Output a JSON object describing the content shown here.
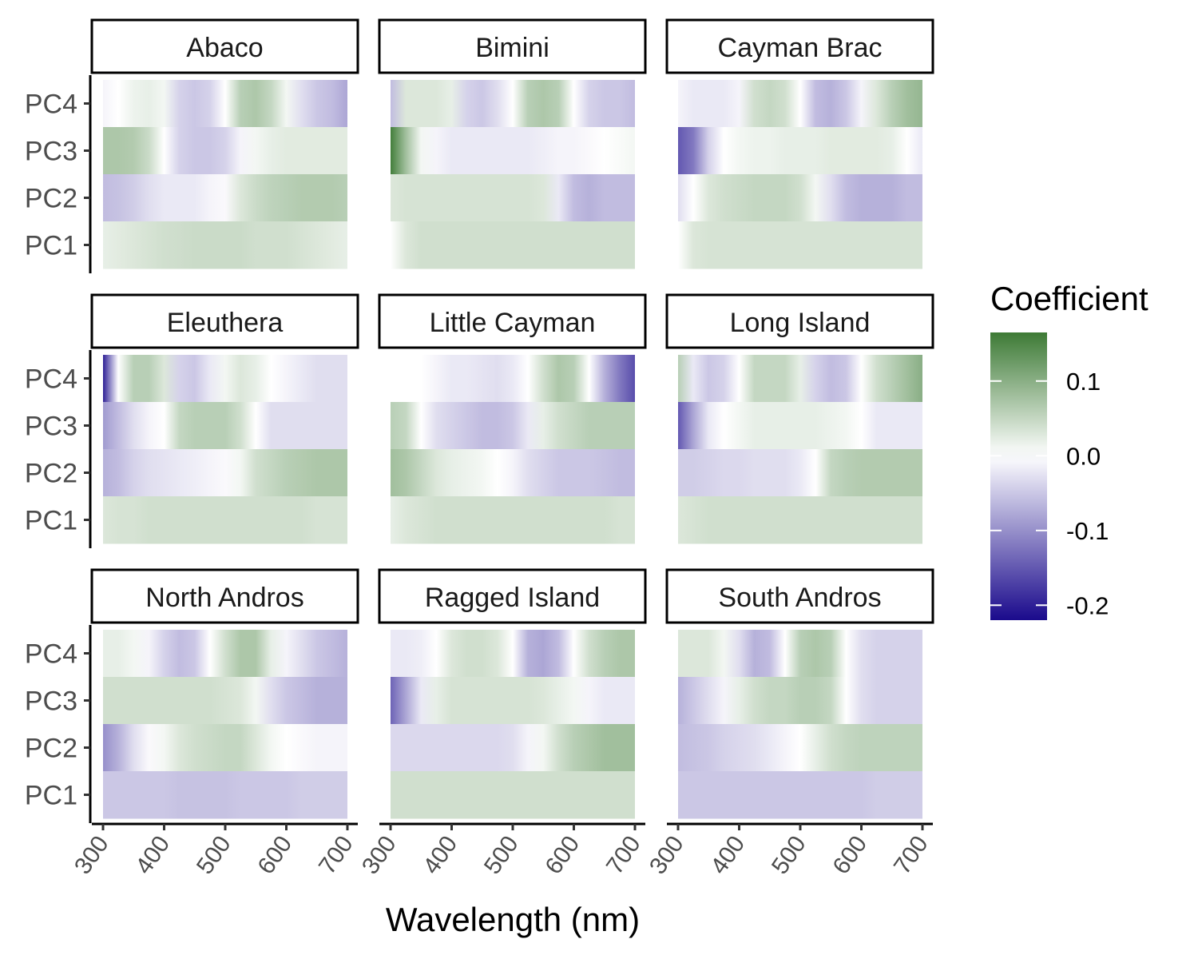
{
  "chart_data": {
    "type": "heatmap",
    "facets": [
      "Abaco",
      "Bimini",
      "Cayman Brac",
      "Eleuthera",
      "Little Cayman",
      "Long Island",
      "North Andros",
      "Ragged Island",
      "South Andros"
    ],
    "x": [
      300,
      325,
      350,
      375,
      400,
      425,
      450,
      475,
      500,
      525,
      550,
      575,
      600,
      625,
      650,
      675,
      700
    ],
    "rows": [
      "PC1",
      "PC2",
      "PC3",
      "PC4"
    ],
    "xlabel": "Wavelength (nm)",
    "xticks": [
      "300",
      "400",
      "500",
      "600",
      "700"
    ],
    "yticks": [
      "PC1",
      "PC2",
      "PC3",
      "PC4"
    ],
    "xlim": [
      300,
      700
    ],
    "legend": {
      "title": "Coefficient",
      "labels": [
        "0.1",
        "0.0",
        "-0.1",
        "-0.2"
      ],
      "ticks": [
        0.1,
        0.0,
        -0.1,
        -0.2
      ],
      "range": [
        -0.22,
        0.165
      ],
      "placement": "right"
    },
    "colors": {
      "low": "#1a0a8c",
      "mid": "#ffffff",
      "high": "#3d7a35"
    },
    "values": {
      "Abaco": {
        "PC1": [
          0.02,
          0.025,
          0.03,
          0.035,
          0.04,
          0.042,
          0.045,
          0.045,
          0.045,
          0.045,
          0.04,
          0.04,
          0.04,
          0.035,
          0.03,
          0.025,
          0.02
        ],
        "PC2": [
          -0.06,
          -0.055,
          -0.045,
          -0.03,
          -0.02,
          -0.02,
          -0.02,
          -0.01,
          -0.005,
          0.03,
          0.045,
          0.055,
          0.06,
          0.065,
          0.065,
          0.065,
          0.06
        ],
        "PC3": [
          0.07,
          0.07,
          0.065,
          0.045,
          0.0,
          -0.04,
          -0.05,
          -0.05,
          -0.04,
          -0.01,
          0.01,
          0.02,
          0.025,
          0.025,
          0.025,
          0.025,
          0.025
        ],
        "PC4": [
          -0.01,
          0.0,
          0.015,
          0.02,
          0.01,
          -0.04,
          -0.05,
          -0.04,
          0.0,
          0.06,
          0.07,
          0.05,
          0.01,
          -0.03,
          -0.05,
          -0.06,
          -0.08
        ]
      },
      "Bimini": {
        "PC1": [
          0.0,
          0.03,
          0.04,
          0.04,
          0.04,
          0.04,
          0.04,
          0.04,
          0.04,
          0.04,
          0.04,
          0.04,
          0.04,
          0.04,
          0.04,
          0.04,
          0.04
        ],
        "PC2": [
          0.03,
          0.035,
          0.035,
          0.035,
          0.035,
          0.035,
          0.035,
          0.035,
          0.035,
          0.035,
          0.03,
          -0.02,
          -0.06,
          -0.07,
          -0.06,
          -0.06,
          -0.06
        ],
        "PC3": [
          0.16,
          0.08,
          0.01,
          -0.01,
          -0.02,
          -0.02,
          -0.02,
          -0.02,
          -0.02,
          -0.02,
          -0.015,
          -0.01,
          -0.01,
          -0.005,
          0.0,
          0.005,
          0.01
        ],
        "PC4": [
          -0.06,
          0.03,
          0.03,
          0.03,
          0.02,
          -0.04,
          -0.05,
          -0.03,
          0.0,
          0.06,
          0.07,
          0.06,
          0.0,
          -0.04,
          -0.05,
          -0.05,
          -0.06
        ]
      },
      "Cayman Brac": {
        "PC1": [
          0.0,
          0.03,
          0.035,
          0.035,
          0.035,
          0.035,
          0.035,
          0.035,
          0.035,
          0.035,
          0.035,
          0.035,
          0.035,
          0.035,
          0.035,
          0.035,
          0.035
        ],
        "PC2": [
          -0.03,
          0.0,
          0.03,
          0.04,
          0.045,
          0.05,
          0.05,
          0.05,
          0.04,
          0.01,
          -0.03,
          -0.06,
          -0.07,
          -0.07,
          -0.07,
          -0.06,
          -0.06
        ],
        "PC3": [
          -0.15,
          -0.12,
          -0.04,
          0.0,
          0.01,
          0.015,
          0.015,
          0.02,
          0.02,
          0.02,
          0.025,
          0.025,
          0.025,
          0.025,
          0.02,
          0.0,
          -0.02
        ],
        "PC4": [
          -0.01,
          -0.02,
          -0.02,
          -0.02,
          -0.01,
          0.04,
          0.05,
          0.04,
          0.0,
          -0.06,
          -0.07,
          -0.05,
          -0.01,
          0.03,
          0.06,
          0.08,
          0.09
        ]
      },
      "Eleuthera": {
        "PC1": [
          0.03,
          0.035,
          0.035,
          0.04,
          0.04,
          0.04,
          0.04,
          0.04,
          0.04,
          0.04,
          0.04,
          0.04,
          0.04,
          0.04,
          0.035,
          0.035,
          0.035
        ],
        "PC2": [
          -0.07,
          -0.06,
          -0.04,
          -0.03,
          -0.025,
          -0.02,
          -0.015,
          -0.01,
          -0.005,
          0.01,
          0.04,
          0.05,
          0.06,
          0.065,
          0.07,
          0.07,
          0.07
        ],
        "PC3": [
          -0.09,
          -0.06,
          -0.03,
          -0.01,
          0.0,
          0.05,
          0.06,
          0.06,
          0.06,
          0.04,
          0.0,
          -0.03,
          -0.03,
          -0.03,
          -0.03,
          -0.03,
          -0.03
        ],
        "PC4": [
          -0.2,
          0.0,
          0.06,
          0.06,
          0.03,
          -0.04,
          -0.05,
          -0.02,
          0.01,
          0.03,
          0.02,
          0.0,
          -0.01,
          -0.02,
          -0.03,
          -0.03,
          -0.03
        ]
      },
      "Little Cayman": {
        "PC1": [
          0.02,
          0.03,
          0.035,
          0.04,
          0.04,
          0.04,
          0.04,
          0.04,
          0.04,
          0.04,
          0.04,
          0.04,
          0.04,
          0.04,
          0.04,
          0.035,
          0.035
        ],
        "PC2": [
          0.08,
          0.07,
          0.05,
          0.03,
          0.02,
          0.015,
          0.01,
          0.0,
          -0.01,
          -0.03,
          -0.04,
          -0.05,
          -0.05,
          -0.05,
          -0.055,
          -0.06,
          -0.06
        ],
        "PC3": [
          0.06,
          0.05,
          0.0,
          -0.03,
          -0.04,
          -0.05,
          -0.06,
          -0.06,
          -0.05,
          -0.02,
          0.02,
          0.04,
          0.05,
          0.06,
          0.06,
          0.06,
          0.06
        ],
        "PC4": [
          0.0,
          0.0,
          0.0,
          -0.01,
          -0.02,
          -0.02,
          -0.025,
          -0.03,
          -0.02,
          0.0,
          0.04,
          0.07,
          0.06,
          0.0,
          -0.07,
          -0.12,
          -0.16
        ]
      },
      "Long Island": {
        "PC1": [
          0.03,
          0.035,
          0.04,
          0.04,
          0.04,
          0.04,
          0.04,
          0.04,
          0.04,
          0.04,
          0.04,
          0.04,
          0.04,
          0.04,
          0.04,
          0.04,
          0.04
        ],
        "PC2": [
          -0.045,
          -0.045,
          -0.04,
          -0.035,
          -0.035,
          -0.03,
          -0.03,
          -0.03,
          -0.02,
          0.0,
          0.05,
          0.06,
          0.065,
          0.065,
          0.065,
          0.065,
          0.065
        ],
        "PC3": [
          -0.15,
          -0.08,
          -0.02,
          0.0,
          0.01,
          0.02,
          0.02,
          0.02,
          0.02,
          0.02,
          0.015,
          0.01,
          0.0,
          -0.02,
          -0.02,
          -0.02,
          -0.02
        ],
        "PC4": [
          0.06,
          -0.02,
          -0.05,
          -0.04,
          0.0,
          0.05,
          0.05,
          0.05,
          0.02,
          -0.04,
          -0.06,
          -0.05,
          0.0,
          0.04,
          0.06,
          0.08,
          0.1
        ]
      },
      "North Andros": {
        "PC1": [
          -0.05,
          -0.05,
          -0.05,
          -0.05,
          -0.05,
          -0.055,
          -0.055,
          -0.055,
          -0.055,
          -0.05,
          -0.05,
          -0.05,
          -0.05,
          -0.045,
          -0.045,
          -0.045,
          -0.045
        ],
        "PC2": [
          -0.1,
          -0.07,
          -0.03,
          -0.005,
          0.01,
          0.03,
          0.04,
          0.045,
          0.05,
          0.05,
          0.03,
          0.01,
          0.0,
          -0.005,
          -0.01,
          -0.01,
          -0.01
        ],
        "PC3": [
          0.04,
          0.04,
          0.04,
          0.04,
          0.04,
          0.04,
          0.04,
          0.04,
          0.035,
          0.03,
          0.01,
          -0.03,
          -0.05,
          -0.06,
          -0.07,
          -0.07,
          -0.07
        ],
        "PC4": [
          0.02,
          0.02,
          0.01,
          -0.01,
          -0.04,
          -0.06,
          -0.05,
          0.0,
          0.04,
          0.07,
          0.07,
          0.02,
          -0.01,
          -0.03,
          -0.05,
          -0.06,
          -0.07
        ]
      },
      "Ragged Island": {
        "PC1": [
          0.04,
          0.04,
          0.04,
          0.04,
          0.04,
          0.04,
          0.04,
          0.04,
          0.04,
          0.04,
          0.04,
          0.04,
          0.04,
          0.04,
          0.04,
          0.04,
          0.04
        ],
        "PC2": [
          -0.035,
          -0.035,
          -0.035,
          -0.035,
          -0.035,
          -0.035,
          -0.035,
          -0.035,
          -0.03,
          -0.01,
          0.01,
          0.04,
          0.06,
          0.07,
          0.08,
          0.08,
          0.08
        ],
        "PC3": [
          -0.14,
          -0.08,
          -0.02,
          0.02,
          0.035,
          0.035,
          0.035,
          0.035,
          0.035,
          0.035,
          0.03,
          0.02,
          0.01,
          -0.01,
          -0.02,
          -0.02,
          -0.02
        ],
        "PC4": [
          -0.02,
          -0.02,
          -0.015,
          0.0,
          0.03,
          0.04,
          0.04,
          0.03,
          0.0,
          -0.07,
          -0.08,
          -0.06,
          0.0,
          0.04,
          0.06,
          0.07,
          0.07
        ]
      },
      "South Andros": {
        "PC1": [
          -0.05,
          -0.05,
          -0.05,
          -0.05,
          -0.05,
          -0.05,
          -0.05,
          -0.05,
          -0.05,
          -0.05,
          -0.05,
          -0.05,
          -0.05,
          -0.045,
          -0.045,
          -0.045,
          -0.045
        ],
        "PC2": [
          -0.06,
          -0.055,
          -0.05,
          -0.04,
          -0.035,
          -0.03,
          -0.02,
          -0.01,
          0.0,
          0.02,
          0.04,
          0.05,
          0.055,
          0.055,
          0.055,
          0.055,
          0.055
        ],
        "PC3": [
          -0.07,
          -0.05,
          -0.03,
          -0.01,
          0.02,
          0.04,
          0.05,
          0.05,
          0.06,
          0.06,
          0.05,
          0.0,
          -0.03,
          -0.04,
          -0.04,
          -0.04,
          -0.04
        ],
        "PC4": [
          0.03,
          0.03,
          0.03,
          0.01,
          -0.03,
          -0.07,
          -0.06,
          0.0,
          0.06,
          0.07,
          0.06,
          0.0,
          -0.03,
          -0.04,
          -0.04,
          -0.04,
          -0.04
        ]
      }
    }
  }
}
